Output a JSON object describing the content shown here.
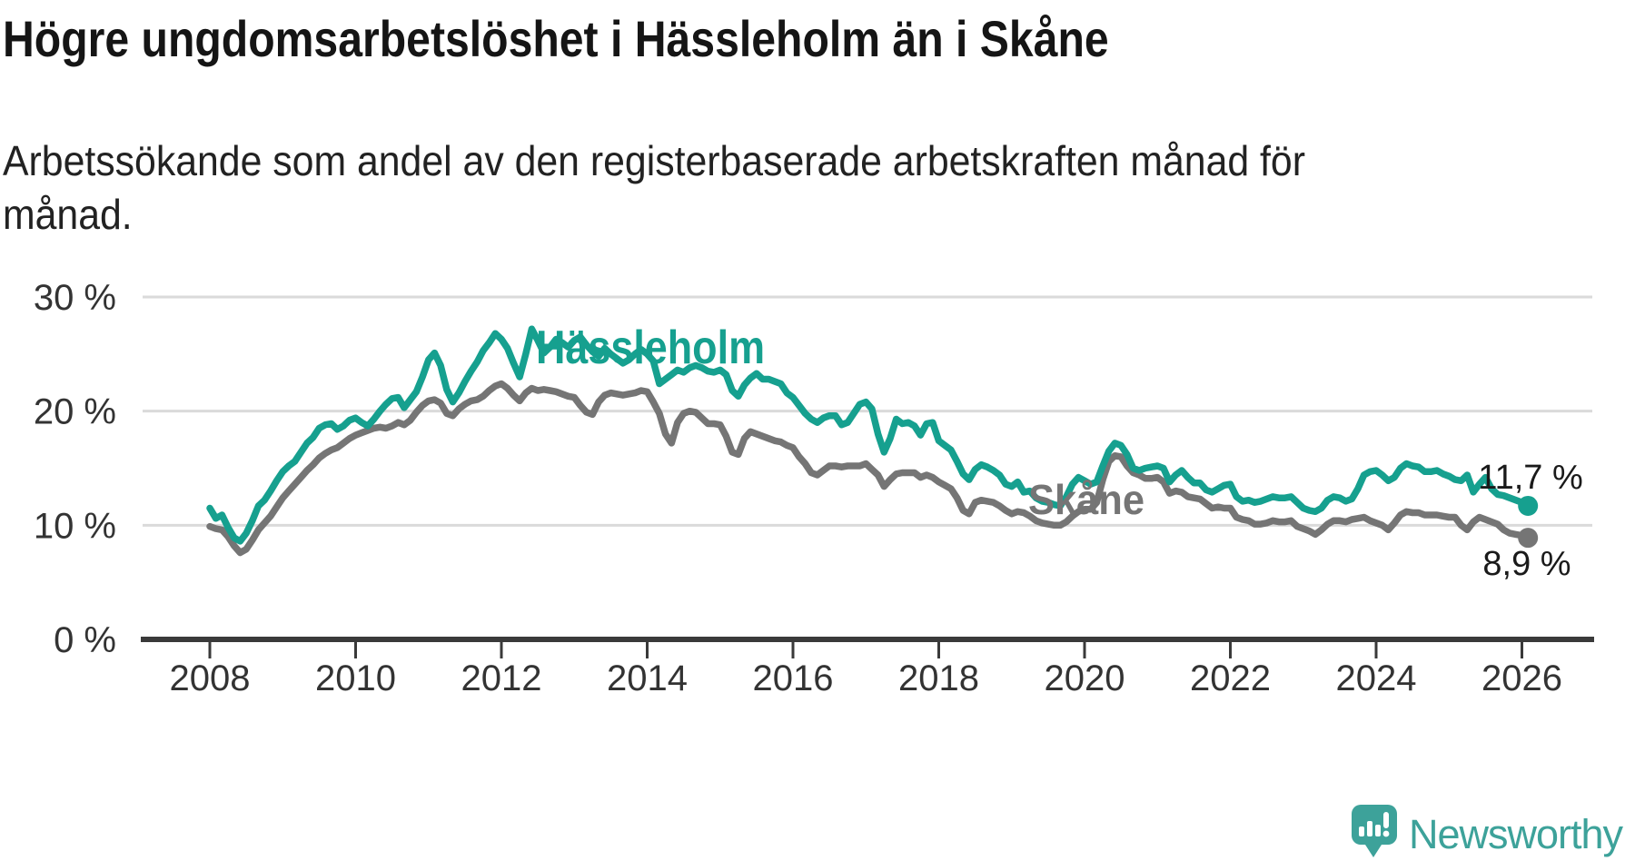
{
  "title": "Högre ungdomsarbetslöshet i Hässleholm än i Skåne",
  "subtitle": "Arbetssökande som andel av den registerbaserade arbetskraften månad för månad.",
  "brand": {
    "name": "Newsworthy",
    "color": "#3da29a"
  },
  "colors": {
    "hassleholm": "#16a08f",
    "skane": "#757575",
    "gridline": "#dadada",
    "axis": "#3a3a3a",
    "text": "#333333"
  },
  "chart_data": {
    "type": "line",
    "title": "Högre ungdomsarbetslöshet i Hässleholm än i Skåne",
    "subtitle": "Arbetssökande som andel av den registerbaserade arbetskraften månad för månad.",
    "x_start": "2008-01",
    "x_end": "2026-02",
    "x_interval": "monthly",
    "x_ticks": [
      "2008",
      "2010",
      "2012",
      "2014",
      "2016",
      "2018",
      "2020",
      "2022",
      "2024",
      "2026"
    ],
    "y_ticks": [
      "0 %",
      "10 %",
      "20 %",
      "30 %"
    ],
    "y_tick_values": [
      0,
      10,
      20,
      30
    ],
    "ylim": [
      0,
      30
    ],
    "grid": true,
    "legend_position": "inline-labels",
    "series": [
      {
        "name": "Hässleholm",
        "color": "#16a08f",
        "end_label": "11,7 %",
        "end_value": 11.7,
        "values": [
          11.5,
          10.6,
          10.9,
          9.8,
          8.9,
          8.6,
          9.3,
          10.4,
          11.7,
          12.2,
          13.0,
          13.9,
          14.7,
          15.2,
          15.6,
          16.4,
          17.2,
          17.7,
          18.5,
          18.8,
          18.9,
          18.4,
          18.7,
          19.2,
          19.4,
          19.0,
          18.7,
          19.3,
          20.0,
          20.6,
          21.1,
          21.2,
          20.3,
          21.0,
          21.7,
          23.0,
          24.5,
          25.1,
          24.0,
          21.9,
          20.8,
          21.6,
          22.6,
          23.5,
          24.3,
          25.3,
          26.0,
          26.8,
          26.3,
          25.5,
          24.2,
          23.0,
          25.0,
          27.2,
          26.2,
          25.1,
          25.6,
          26.3,
          26.0,
          25.6,
          26.2,
          26.5,
          25.8,
          25.2,
          24.8,
          25.5,
          25.0,
          24.6,
          24.2,
          24.5,
          25.0,
          25.4,
          25.0,
          24.4,
          22.4,
          22.8,
          23.2,
          23.6,
          23.4,
          23.8,
          24.0,
          23.8,
          23.5,
          23.4,
          23.6,
          23.2,
          21.8,
          21.3,
          22.3,
          22.9,
          23.3,
          22.8,
          22.8,
          22.6,
          22.4,
          21.6,
          21.2,
          20.5,
          19.8,
          19.3,
          19.0,
          19.4,
          19.6,
          19.6,
          18.8,
          19.0,
          19.8,
          20.6,
          20.8,
          20.2,
          18.0,
          16.4,
          17.6,
          19.3,
          18.9,
          19.0,
          18.7,
          17.9,
          18.9,
          19.0,
          17.4,
          17.0,
          16.6,
          15.6,
          14.5,
          14.0,
          14.9,
          15.3,
          15.1,
          14.8,
          14.4,
          13.6,
          13.4,
          13.8,
          12.9,
          13.0,
          12.4,
          12.1,
          12.0,
          11.8,
          11.7,
          12.5,
          13.6,
          14.2,
          13.9,
          13.6,
          13.8,
          15.2,
          16.5,
          17.2,
          17.0,
          16.2,
          15.0,
          14.8,
          15.0,
          15.1,
          15.2,
          15.0,
          13.8,
          14.4,
          14.8,
          14.2,
          13.7,
          13.7,
          13.1,
          12.9,
          13.2,
          13.5,
          13.6,
          12.5,
          12.1,
          12.2,
          12.0,
          12.1,
          12.3,
          12.5,
          12.4,
          12.4,
          12.5,
          12.0,
          11.5,
          11.3,
          11.2,
          11.5,
          12.2,
          12.5,
          12.4,
          12.1,
          12.3,
          13.2,
          14.4,
          14.7,
          14.8,
          14.4,
          13.9,
          14.2,
          15.0,
          15.4,
          15.2,
          15.1,
          14.7,
          14.7,
          14.8,
          14.5,
          14.3,
          14.0,
          13.9,
          14.4,
          12.9,
          13.6,
          14.2,
          13.2,
          12.7,
          12.6,
          12.4,
          12.2,
          12.0,
          11.7
        ]
      },
      {
        "name": "Skåne",
        "color": "#757575",
        "end_label": "8,9 %",
        "end_value": 8.9,
        "values": [
          9.9,
          9.7,
          9.6,
          9.0,
          8.2,
          7.6,
          7.9,
          8.7,
          9.6,
          10.2,
          10.8,
          11.6,
          12.4,
          13.0,
          13.6,
          14.2,
          14.8,
          15.3,
          15.9,
          16.3,
          16.6,
          16.8,
          17.2,
          17.6,
          17.9,
          18.1,
          18.3,
          18.5,
          18.6,
          18.5,
          18.7,
          19.0,
          18.8,
          19.2,
          19.9,
          20.5,
          20.9,
          21.0,
          20.7,
          19.8,
          19.6,
          20.2,
          20.6,
          20.9,
          21.0,
          21.3,
          21.8,
          22.2,
          22.4,
          22.0,
          21.4,
          20.9,
          21.6,
          22.0,
          21.8,
          21.9,
          21.8,
          21.7,
          21.5,
          21.3,
          21.2,
          20.5,
          19.9,
          19.7,
          20.8,
          21.4,
          21.6,
          21.5,
          21.4,
          21.5,
          21.6,
          21.8,
          21.7,
          20.8,
          19.8,
          18.0,
          17.2,
          19.0,
          19.8,
          20.0,
          19.9,
          19.4,
          18.9,
          18.9,
          18.8,
          17.8,
          16.4,
          16.2,
          17.6,
          18.2,
          18.0,
          17.8,
          17.6,
          17.4,
          17.3,
          17.0,
          16.8,
          16.0,
          15.4,
          14.6,
          14.4,
          14.8,
          15.2,
          15.2,
          15.1,
          15.2,
          15.2,
          15.2,
          15.4,
          14.9,
          14.4,
          13.4,
          14.0,
          14.5,
          14.6,
          14.6,
          14.6,
          14.2,
          14.4,
          14.2,
          13.8,
          13.5,
          13.2,
          12.4,
          11.3,
          11.0,
          12.0,
          12.2,
          12.1,
          12.0,
          11.7,
          11.3,
          11.0,
          11.2,
          11.1,
          10.8,
          10.4,
          10.2,
          10.1,
          10.0,
          10.0,
          10.3,
          10.8,
          11.2,
          11.4,
          11.4,
          12.0,
          14.0,
          15.6,
          16.1,
          16.0,
          15.2,
          14.6,
          14.4,
          14.1,
          14.1,
          14.2,
          13.8,
          12.8,
          13.0,
          12.9,
          12.5,
          12.4,
          12.3,
          11.9,
          11.5,
          11.6,
          11.5,
          11.5,
          10.7,
          10.5,
          10.4,
          10.1,
          10.1,
          10.2,
          10.4,
          10.3,
          10.3,
          10.4,
          9.9,
          9.7,
          9.5,
          9.2,
          9.6,
          10.1,
          10.4,
          10.4,
          10.3,
          10.5,
          10.6,
          10.7,
          10.4,
          10.2,
          10.0,
          9.6,
          10.2,
          10.9,
          11.2,
          11.1,
          11.1,
          10.9,
          10.9,
          10.9,
          10.8,
          10.7,
          10.7,
          10.0,
          9.6,
          10.3,
          10.7,
          10.5,
          10.3,
          10.1,
          9.6,
          9.3,
          9.2,
          9.1,
          8.9
        ]
      }
    ]
  }
}
